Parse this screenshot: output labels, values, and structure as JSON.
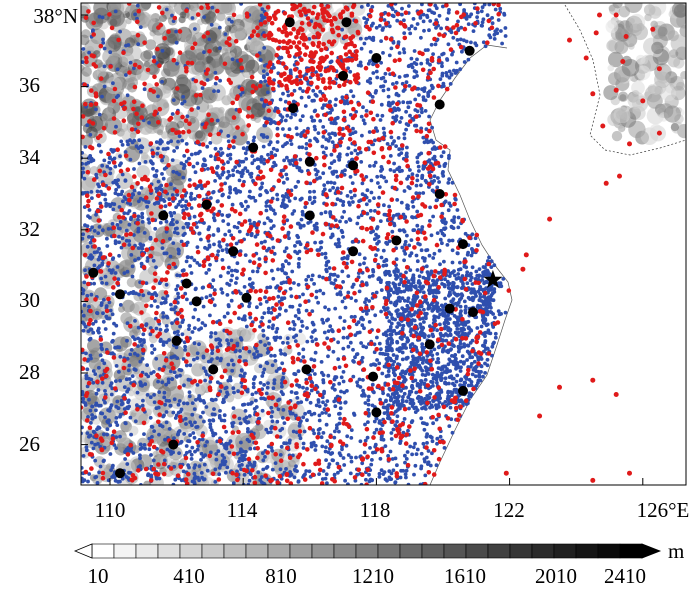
{
  "map": {
    "lat_labels": [
      "38°N",
      "36",
      "34",
      "32",
      "30",
      "28",
      "26"
    ],
    "lon_labels": [
      "110",
      "114",
      "118",
      "122",
      "126°E"
    ],
    "colorbar": {
      "unit": "m",
      "tick_labels": [
        "10",
        "410",
        "810",
        "1210",
        "1610",
        "2010",
        "2410"
      ],
      "gray_range": [
        "#ffffff",
        "#000000"
      ]
    },
    "colors": {
      "blue_station": "#2f4fae",
      "red_station": "#e01a1a",
      "black_station": "#000000",
      "land": "#ffffff"
    },
    "black_stations": [
      {
        "lon": 115.4,
        "lat": 37.8
      },
      {
        "lon": 117.1,
        "lat": 37.8
      },
      {
        "lon": 118.0,
        "lat": 36.8
      },
      {
        "lon": 117.0,
        "lat": 36.3
      },
      {
        "lon": 120.8,
        "lat": 37.0
      },
      {
        "lon": 115.5,
        "lat": 35.4
      },
      {
        "lon": 119.9,
        "lat": 35.5
      },
      {
        "lon": 114.3,
        "lat": 34.3
      },
      {
        "lon": 116.0,
        "lat": 33.9
      },
      {
        "lon": 117.3,
        "lat": 33.8
      },
      {
        "lon": 119.9,
        "lat": 33.0
      },
      {
        "lon": 111.6,
        "lat": 32.4
      },
      {
        "lon": 112.9,
        "lat": 32.7
      },
      {
        "lon": 116.0,
        "lat": 32.4
      },
      {
        "lon": 118.6,
        "lat": 31.7
      },
      {
        "lon": 120.6,
        "lat": 31.6
      },
      {
        "lon": 113.7,
        "lat": 31.4
      },
      {
        "lon": 117.3,
        "lat": 31.4
      },
      {
        "lon": 109.5,
        "lat": 30.8
      },
      {
        "lon": 110.3,
        "lat": 30.2
      },
      {
        "lon": 112.3,
        "lat": 30.5
      },
      {
        "lon": 112.6,
        "lat": 30.0
      },
      {
        "lon": 114.1,
        "lat": 30.1
      },
      {
        "lon": 120.2,
        "lat": 29.8
      },
      {
        "lon": 119.6,
        "lat": 28.8
      },
      {
        "lon": 120.9,
        "lat": 29.7
      },
      {
        "lon": 112.0,
        "lat": 28.9
      },
      {
        "lon": 113.1,
        "lat": 28.1
      },
      {
        "lon": 115.9,
        "lat": 28.1
      },
      {
        "lon": 117.9,
        "lat": 27.9
      },
      {
        "lon": 120.6,
        "lat": 27.5
      },
      {
        "lon": 118.0,
        "lat": 26.9
      },
      {
        "lon": 111.9,
        "lat": 26.0
      },
      {
        "lon": 110.3,
        "lat": 25.2
      }
    ],
    "star_marker": {
      "lon": 121.5,
      "lat": 30.6
    },
    "red_ocean_stations": [
      {
        "lon": 124.7,
        "lat": 38.0
      },
      {
        "lon": 125.2,
        "lat": 38.0
      },
      {
        "lon": 123.8,
        "lat": 37.3
      },
      {
        "lon": 124.6,
        "lat": 37.5
      },
      {
        "lon": 125.5,
        "lat": 37.4
      },
      {
        "lon": 126.3,
        "lat": 37.6
      },
      {
        "lon": 124.3,
        "lat": 36.8
      },
      {
        "lon": 125.4,
        "lat": 36.7
      },
      {
        "lon": 126.5,
        "lat": 36.5
      },
      {
        "lon": 124.5,
        "lat": 35.8
      },
      {
        "lon": 125.2,
        "lat": 35.9
      },
      {
        "lon": 126.0,
        "lat": 35.6
      },
      {
        "lon": 124.8,
        "lat": 34.9
      },
      {
        "lon": 125.6,
        "lat": 34.4
      },
      {
        "lon": 126.5,
        "lat": 34.7
      },
      {
        "lon": 124.9,
        "lat": 33.3
      },
      {
        "lon": 125.3,
        "lat": 33.5
      },
      {
        "lon": 123.2,
        "lat": 32.3
      },
      {
        "lon": 122.5,
        "lat": 31.3
      },
      {
        "lon": 122.4,
        "lat": 30.9
      },
      {
        "lon": 123.5,
        "lat": 27.6
      },
      {
        "lon": 124.5,
        "lat": 27.8
      },
      {
        "lon": 125.2,
        "lat": 27.4
      },
      {
        "lon": 122.9,
        "lat": 26.8
      },
      {
        "lon": 121.9,
        "lat": 25.2
      },
      {
        "lon": 124.5,
        "lat": 25.0
      },
      {
        "lon": 125.6,
        "lat": 25.2
      }
    ]
  }
}
